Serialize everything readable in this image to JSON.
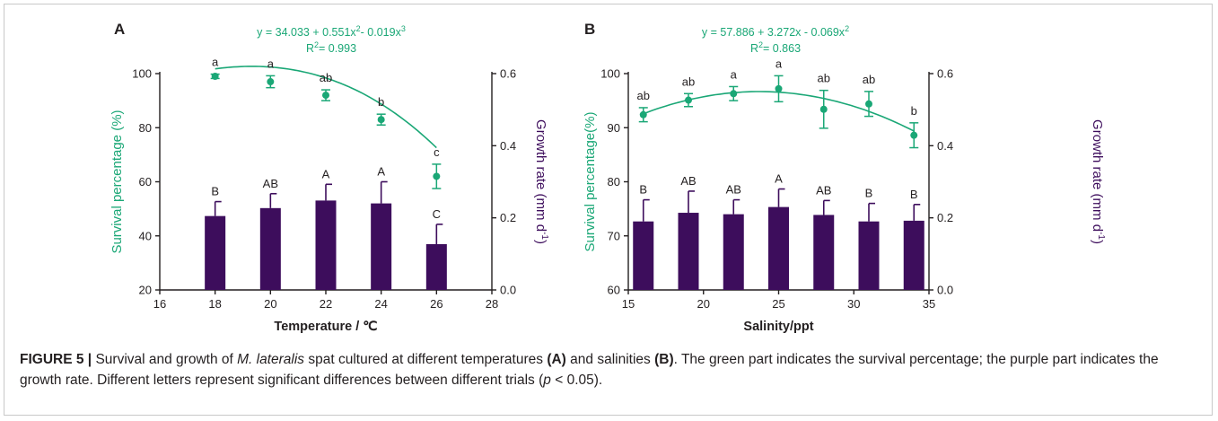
{
  "colors": {
    "green": "#1aa776",
    "purple": "#3d0d5c",
    "text": "#231f20",
    "frame": "#c8c8c8"
  },
  "chart_data": [
    {
      "panel_label": "A",
      "type": "bar",
      "equation_main": "y = 34.033 + 0.551x",
      "equation_sup1": "2",
      "equation_mid": "- 0.019x",
      "equation_sup2": "3",
      "r2_prefix": "R",
      "r2_sup": "2",
      "r2_value": "= 0.993",
      "xlabel": "Temperature / ℃",
      "ylabel_left": "Survival percentage (%)",
      "ylabel_right": "Growth rate (mm d",
      "ylabel_right_sup": "-1",
      "ylabel_right_end": ")",
      "xlim": [
        16,
        28
      ],
      "xticks": [
        16,
        18,
        20,
        22,
        24,
        26,
        28
      ],
      "ylim_left": [
        20,
        100
      ],
      "yticks_left": [
        20,
        40,
        60,
        80,
        100
      ],
      "ylim_right": [
        0.0,
        0.6
      ],
      "yticks_right": [
        "0.0",
        "0.2",
        "0.4",
        "0.6"
      ],
      "x": [
        18,
        20,
        22,
        24,
        26
      ],
      "survival": {
        "values": [
          99,
          97,
          92,
          83,
          62
        ],
        "errors": [
          0.8,
          2.2,
          2.0,
          2.0,
          4.5
        ],
        "letters": [
          "a",
          "a",
          "ab",
          "b",
          "c"
        ]
      },
      "growth": {
        "values": [
          0.205,
          0.227,
          0.248,
          0.24,
          0.127
        ],
        "errors": [
          0.04,
          0.04,
          0.045,
          0.06,
          0.055
        ],
        "letters": [
          "B",
          "AB",
          "A",
          "A",
          "C"
        ]
      },
      "fit": {
        "degree_terms": [
          34.033,
          0,
          0.551,
          -0.019
        ]
      }
    },
    {
      "panel_label": "B",
      "type": "bar",
      "equation_main": "y = 57.886 + 3.272x - 0.069x",
      "equation_sup1": "2",
      "equation_mid": "",
      "equation_sup2": "",
      "r2_prefix": "R",
      "r2_sup": "2",
      "r2_value": "= 0.863",
      "xlabel": "Salinity/ppt",
      "ylabel_left": "Survival percentage(%)",
      "ylabel_right": "Growth rate (mm d",
      "ylabel_right_sup": "-1",
      "ylabel_right_end": ")",
      "xlim": [
        15,
        35
      ],
      "xticks": [
        15,
        20,
        25,
        30,
        35
      ],
      "ylim_left": [
        60,
        100
      ],
      "yticks_left": [
        60,
        70,
        80,
        90,
        100
      ],
      "ylim_right": [
        0.0,
        0.6
      ],
      "yticks_right": [
        "0.0",
        "0.2",
        "0.4",
        "0.6"
      ],
      "x": [
        16,
        19,
        22,
        25,
        28,
        31,
        34
      ],
      "survival": {
        "values": [
          92.4,
          95.1,
          96.3,
          97.2,
          93.4,
          94.4,
          88.6
        ],
        "errors": [
          1.3,
          1.2,
          1.3,
          2.4,
          3.5,
          2.3,
          2.3
        ],
        "letters": [
          "ab",
          "ab",
          "a",
          "a",
          "ab",
          "ab",
          "b"
        ]
      },
      "growth": {
        "values": [
          0.19,
          0.214,
          0.21,
          0.23,
          0.208,
          0.19,
          0.192
        ],
        "errors": [
          0.06,
          0.06,
          0.04,
          0.05,
          0.04,
          0.05,
          0.045
        ],
        "letters": [
          "B",
          "AB",
          "AB",
          "A",
          "AB",
          "B",
          "B"
        ]
      },
      "fit": {
        "degree_terms": [
          57.886,
          3.272,
          -0.069,
          0
        ]
      }
    }
  ],
  "caption": {
    "label": "FIGURE 5 |",
    "t1": " Survival and growth of ",
    "species": "M. lateralis",
    "t2": " spat cultured at different temperatures ",
    "a": "(A)",
    "t3": " and salinities ",
    "b": "(B)",
    "t4": ". The green part indicates the survival percentage; the purple part indicates the growth rate. Different letters represent significant differences between different trials (",
    "p": "p",
    "t5": " < 0.05)."
  }
}
